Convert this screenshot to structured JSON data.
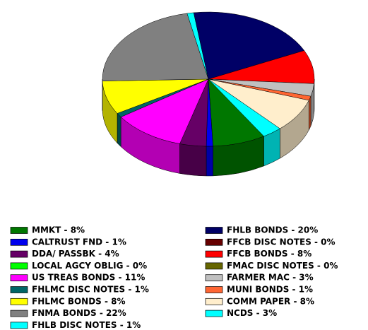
{
  "chart_data": {
    "type": "pie",
    "categories": [
      "MMKT - 8%",
      "CALTRUST FND - 1%",
      "DDA/ PASSBK - 4%",
      "LOCAL AGCY OBLIG - 0%",
      "US TREAS BONDS - 11%",
      "FHLMC DISC NOTES - 1%",
      "FHLMC BONDS - 8%",
      "FNMA BONDS - 22%",
      "FHLB DISC NOTES - 1%",
      "FHLB BONDS - 20%",
      "FFCB DISC NOTES - 0%",
      "FFCB BONDS - 8%",
      "FMAC DISC NOTES - 0%",
      "FARMER MAC - 3%",
      "MUNI BONDS - 1%",
      "COMM PAPER - 8%",
      "NCDS - 3%"
    ],
    "values": [
      8,
      1,
      4,
      0,
      11,
      1,
      8,
      22,
      1,
      20,
      0,
      8,
      0,
      3,
      1,
      8,
      3
    ],
    "colors": [
      "#007700",
      "#0000ee",
      "#660066",
      "#00ff00",
      "#ff00ff",
      "#006666",
      "#ffff00",
      "#808080",
      "#00ffff",
      "#000066",
      "#660000",
      "#ff0000",
      "#666600",
      "#c0c0c0",
      "#ff6633",
      "#ffeecc",
      "#00ffff"
    ]
  }
}
